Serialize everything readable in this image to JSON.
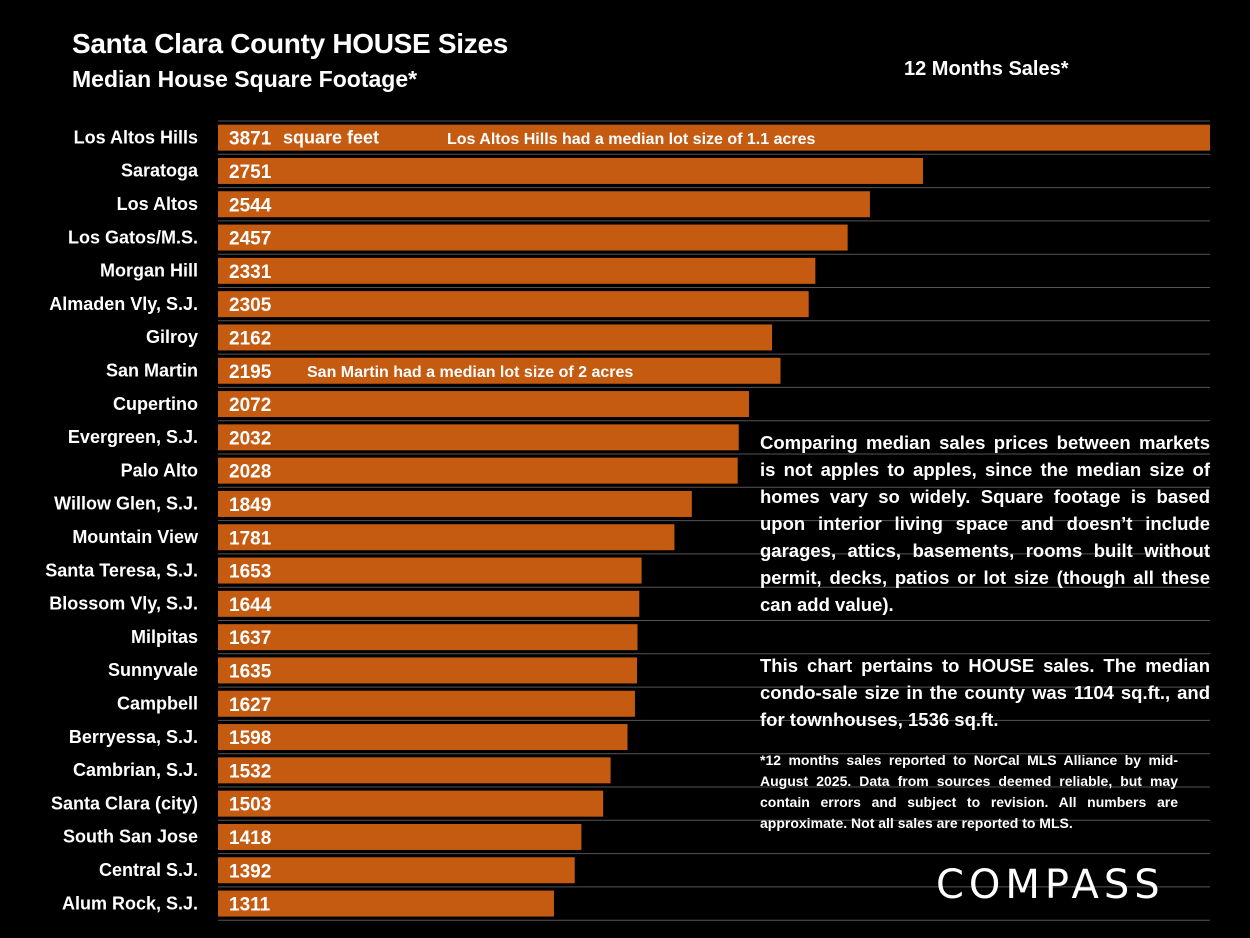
{
  "header": {
    "title": "Santa Clara County HOUSE Sizes",
    "subtitle": "Median House Square Footage*",
    "period": "12 Months Sales*"
  },
  "chart_data": {
    "type": "bar",
    "orientation": "horizontal",
    "title": "Santa Clara County HOUSE Sizes",
    "subtitle": "Median House Square Footage*",
    "categories": [
      "Los Altos Hills",
      "Saratoga",
      "Los Altos",
      "Los Gatos/M.S.",
      "Morgan Hill",
      "Almaden Vly, S.J.",
      "Gilroy",
      "San Martin",
      "Cupertino",
      "Evergreen, S.J.",
      "Palo Alto",
      "Willow Glen, S.J.",
      "Mountain View",
      "Santa Teresa, S.J.",
      "Blossom Vly, S.J.",
      "Milpitas",
      "Sunnyvale",
      "Campbell",
      "Berryessa, S.J.",
      "Cambrian, S.J.",
      "Santa Clara (city)",
      "South San Jose",
      "Central S.J.",
      "Alum Rock, S.J."
    ],
    "values": [
      3871,
      2751,
      2544,
      2457,
      2331,
      2305,
      2162,
      2195,
      2072,
      2032,
      2028,
      1849,
      1781,
      1653,
      1644,
      1637,
      1635,
      1627,
      1598,
      1532,
      1503,
      1418,
      1392,
      1311
    ],
    "first_value_suffix": "square feet",
    "annotations": [
      {
        "category": "Los Altos Hills",
        "text": "Los Altos Hills had a median lot size of 1.1 acres"
      },
      {
        "category": "San Martin",
        "text": "San Martin had a median lot size of 2 acres"
      }
    ],
    "xlim": [
      0,
      3871
    ],
    "grid": true,
    "bar_color": "#C55A11",
    "data_labels": true
  },
  "notes": {
    "explain_1": "Comparing median sales prices between markets is not apples to apples, since the median size of homes vary so widely. Square footage is based upon interior living space and doesn’t include garages, attics, basements, rooms built without permit, decks, patios or lot size (though all these can add value).",
    "explain_2": "This chart pertains to HOUSE sales. The median condo-sale size in the county was 1104 sq.ft., and for townhouses, 1536 sq.ft.",
    "footnote": "*12 months sales reported to NorCal MLS Alliance by mid-August 2025. Data from sources deemed reliable, but may contain errors and subject to revision. All numbers are approximate. Not all sales are reported to MLS."
  },
  "brand": {
    "logo_text": "COMPASS"
  },
  "colors": {
    "background": "#000000",
    "bar": "#C55A11",
    "text": "#FFFFFF",
    "gridline": "#555555"
  }
}
